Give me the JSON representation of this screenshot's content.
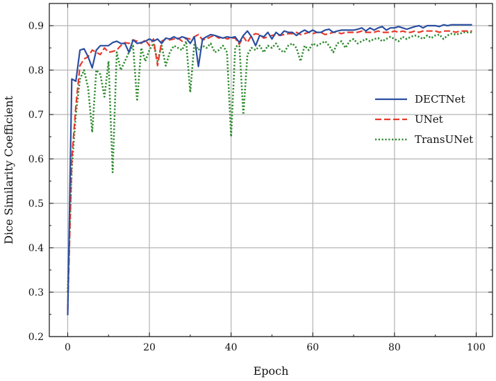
{
  "chart_data": {
    "type": "line",
    "title": "",
    "xlabel": "Epoch",
    "ylabel": "Dice Similarity Coefficient",
    "xlim": [
      -4.5,
      104
    ],
    "ylim": [
      0.2,
      0.95
    ],
    "xticks": [
      0,
      20,
      40,
      60,
      80,
      100
    ],
    "yticks": [
      0.2,
      0.3,
      0.4,
      0.5,
      0.6,
      0.7,
      0.8,
      0.9
    ],
    "xtick_labels": [
      "0",
      "20",
      "40",
      "60",
      "80",
      "100"
    ],
    "ytick_labels": [
      "0.2",
      "0.3",
      "0.4",
      "0.5",
      "0.6",
      "0.7",
      "0.8",
      "0.9"
    ],
    "grid": true,
    "legend_position": "center-right",
    "series": [
      {
        "name": "DECTNet",
        "color": "#2a4ea0",
        "style": "solid",
        "x": [
          0,
          1,
          2,
          3,
          4,
          5,
          6,
          7,
          8,
          9,
          10,
          11,
          12,
          13,
          14,
          15,
          16,
          17,
          18,
          19,
          20,
          21,
          22,
          23,
          24,
          25,
          26,
          27,
          28,
          29,
          30,
          31,
          32,
          33,
          34,
          35,
          36,
          37,
          38,
          39,
          40,
          41,
          42,
          43,
          44,
          45,
          46,
          47,
          48,
          49,
          50,
          51,
          52,
          53,
          54,
          55,
          56,
          57,
          58,
          59,
          60,
          61,
          62,
          63,
          64,
          65,
          66,
          67,
          68,
          69,
          70,
          71,
          72,
          73,
          74,
          75,
          76,
          77,
          78,
          79,
          80,
          81,
          82,
          83,
          84,
          85,
          86,
          87,
          88,
          89,
          90,
          91,
          92,
          93,
          94,
          95,
          96,
          97,
          98,
          99
        ],
        "values": [
          0.248,
          0.78,
          0.775,
          0.845,
          0.848,
          0.83,
          0.805,
          0.845,
          0.855,
          0.855,
          0.855,
          0.862,
          0.865,
          0.86,
          0.86,
          0.84,
          0.868,
          0.86,
          0.862,
          0.865,
          0.87,
          0.865,
          0.87,
          0.86,
          0.872,
          0.87,
          0.875,
          0.87,
          0.875,
          0.872,
          0.86,
          0.875,
          0.808,
          0.87,
          0.875,
          0.88,
          0.878,
          0.875,
          0.872,
          0.875,
          0.873,
          0.875,
          0.862,
          0.878,
          0.888,
          0.875,
          0.855,
          0.878,
          0.875,
          0.885,
          0.87,
          0.885,
          0.878,
          0.888,
          0.885,
          0.885,
          0.878,
          0.885,
          0.89,
          0.885,
          0.89,
          0.885,
          0.885,
          0.89,
          0.892,
          0.885,
          0.888,
          0.89,
          0.89,
          0.89,
          0.89,
          0.892,
          0.895,
          0.888,
          0.895,
          0.89,
          0.895,
          0.898,
          0.89,
          0.895,
          0.895,
          0.898,
          0.895,
          0.892,
          0.895,
          0.898,
          0.9,
          0.895,
          0.9,
          0.9,
          0.9,
          0.898,
          0.902,
          0.9,
          0.902,
          0.902,
          0.902,
          0.902,
          0.902,
          0.902
        ]
      },
      {
        "name": "UNet",
        "color": "#e8392a",
        "style": "dashed",
        "x": [
          0,
          1,
          2,
          3,
          4,
          5,
          6,
          7,
          8,
          9,
          10,
          11,
          12,
          13,
          14,
          15,
          16,
          17,
          18,
          19,
          20,
          21,
          22,
          23,
          24,
          25,
          26,
          27,
          28,
          29,
          30,
          31,
          32,
          33,
          34,
          35,
          36,
          37,
          38,
          39,
          40,
          41,
          42,
          43,
          44,
          45,
          46,
          47,
          48,
          49,
          50,
          51,
          52,
          53,
          54,
          55,
          56,
          57,
          58,
          59,
          60,
          61,
          62,
          63,
          64,
          65,
          66,
          67,
          68,
          69,
          70,
          71,
          72,
          73,
          74,
          75,
          76,
          77,
          78,
          79,
          80,
          81,
          82,
          83,
          84,
          85,
          86,
          87,
          88,
          89,
          90,
          91,
          92,
          93,
          94,
          95,
          96,
          97,
          98,
          99
        ],
        "values": [
          0.26,
          0.6,
          0.72,
          0.81,
          0.825,
          0.83,
          0.845,
          0.84,
          0.835,
          0.85,
          0.84,
          0.842,
          0.845,
          0.855,
          0.862,
          0.86,
          0.868,
          0.865,
          0.86,
          0.868,
          0.855,
          0.87,
          0.81,
          0.865,
          0.87,
          0.868,
          0.87,
          0.872,
          0.865,
          0.872,
          0.87,
          0.875,
          0.88,
          0.868,
          0.87,
          0.875,
          0.878,
          0.872,
          0.875,
          0.87,
          0.872,
          0.872,
          0.858,
          0.875,
          0.862,
          0.878,
          0.882,
          0.88,
          0.872,
          0.875,
          0.878,
          0.88,
          0.878,
          0.88,
          0.882,
          0.882,
          0.885,
          0.88,
          0.882,
          0.885,
          0.882,
          0.885,
          0.885,
          0.88,
          0.882,
          0.885,
          0.885,
          0.882,
          0.885,
          0.885,
          0.885,
          0.885,
          0.888,
          0.885,
          0.885,
          0.885,
          0.888,
          0.885,
          0.885,
          0.885,
          0.888,
          0.885,
          0.888,
          0.885,
          0.885,
          0.888,
          0.885,
          0.888,
          0.888,
          0.888,
          0.888,
          0.885,
          0.888,
          0.888,
          0.888,
          0.885,
          0.888,
          0.888,
          0.888,
          0.888
        ]
      },
      {
        "name": "TransUNet",
        "color": "#2e8a2e",
        "style": "dotted",
        "x": [
          0,
          1,
          2,
          3,
          4,
          5,
          6,
          7,
          8,
          9,
          10,
          11,
          12,
          13,
          14,
          15,
          16,
          17,
          18,
          19,
          20,
          21,
          22,
          23,
          24,
          25,
          26,
          27,
          28,
          29,
          30,
          31,
          32,
          33,
          34,
          35,
          36,
          37,
          38,
          39,
          40,
          41,
          42,
          43,
          44,
          45,
          46,
          47,
          48,
          49,
          50,
          51,
          52,
          53,
          54,
          55,
          56,
          57,
          58,
          59,
          60,
          61,
          62,
          63,
          64,
          65,
          66,
          67,
          68,
          69,
          70,
          71,
          72,
          73,
          74,
          75,
          76,
          77,
          78,
          79,
          80,
          81,
          82,
          83,
          84,
          85,
          86,
          87,
          88,
          89,
          90,
          91,
          92,
          93,
          94,
          95,
          96,
          97,
          98,
          99
        ],
        "values": [
          0.3,
          0.58,
          0.7,
          0.78,
          0.8,
          0.76,
          0.66,
          0.8,
          0.79,
          0.74,
          0.82,
          0.57,
          0.84,
          0.8,
          0.82,
          0.84,
          0.855,
          0.73,
          0.85,
          0.82,
          0.845,
          0.86,
          0.82,
          0.855,
          0.81,
          0.84,
          0.855,
          0.85,
          0.845,
          0.865,
          0.75,
          0.86,
          0.845,
          0.855,
          0.85,
          0.86,
          0.84,
          0.845,
          0.855,
          0.84,
          0.65,
          0.85,
          0.86,
          0.7,
          0.835,
          0.85,
          0.845,
          0.855,
          0.84,
          0.855,
          0.85,
          0.86,
          0.845,
          0.84,
          0.855,
          0.86,
          0.85,
          0.82,
          0.855,
          0.845,
          0.86,
          0.855,
          0.86,
          0.865,
          0.855,
          0.84,
          0.86,
          0.865,
          0.85,
          0.865,
          0.87,
          0.86,
          0.865,
          0.87,
          0.865,
          0.87,
          0.872,
          0.865,
          0.87,
          0.875,
          0.87,
          0.865,
          0.875,
          0.87,
          0.875,
          0.878,
          0.875,
          0.87,
          0.878,
          0.872,
          0.878,
          0.88,
          0.87,
          0.878,
          0.882,
          0.88,
          0.882,
          0.885,
          0.885,
          0.885
        ]
      }
    ]
  }
}
